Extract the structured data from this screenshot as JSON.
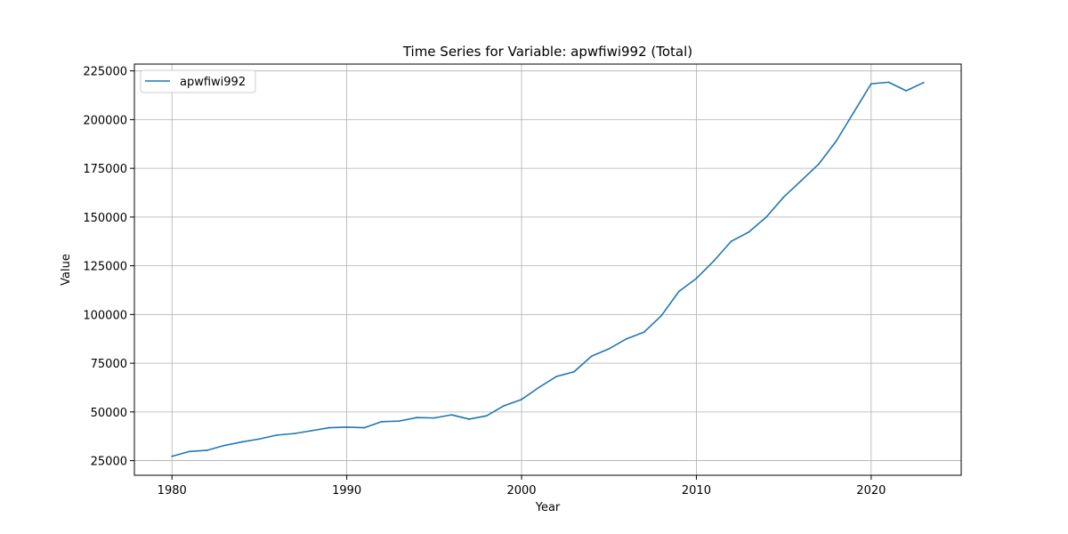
{
  "chart_data": {
    "type": "line",
    "title": "Time Series for Variable: apwfiwi992 (Total)",
    "xlabel": "Year",
    "ylabel": "Value",
    "xlim": [
      1977.85,
      2025.15
    ],
    "ylim": [
      17500,
      228500
    ],
    "xticks": [
      1980,
      1990,
      2000,
      2010,
      2020
    ],
    "yticks": [
      25000,
      50000,
      75000,
      100000,
      125000,
      150000,
      175000,
      200000,
      225000
    ],
    "grid": true,
    "legend_position": "top-left",
    "colors": {
      "line": "#1f77b4",
      "grid": "#b0b0b0",
      "axes": "#000000"
    },
    "series": [
      {
        "name": "apwfiwi992",
        "x": [
          1980,
          1981,
          1982,
          1983,
          1984,
          1985,
          1986,
          1987,
          1988,
          1989,
          1990,
          1991,
          1992,
          1993,
          1994,
          1995,
          1996,
          1997,
          1998,
          1999,
          2000,
          2001,
          2002,
          2003,
          2004,
          2005,
          2006,
          2007,
          2008,
          2009,
          2010,
          2011,
          2012,
          2013,
          2014,
          2015,
          2016,
          2017,
          2018,
          2019,
          2020,
          2021,
          2022,
          2023
        ],
        "values": [
          27200,
          29700,
          30300,
          32800,
          34600,
          36100,
          38100,
          38900,
          40400,
          41900,
          42200,
          41900,
          45000,
          45300,
          47100,
          46900,
          48500,
          46300,
          48000,
          53200,
          56400,
          62600,
          68200,
          70600,
          78600,
          82400,
          87500,
          90900,
          99400,
          111800,
          118500,
          127500,
          137600,
          142300,
          150000,
          160300,
          168700,
          177200,
          189000,
          203700,
          218400,
          219200,
          214800,
          219000
        ]
      }
    ]
  }
}
